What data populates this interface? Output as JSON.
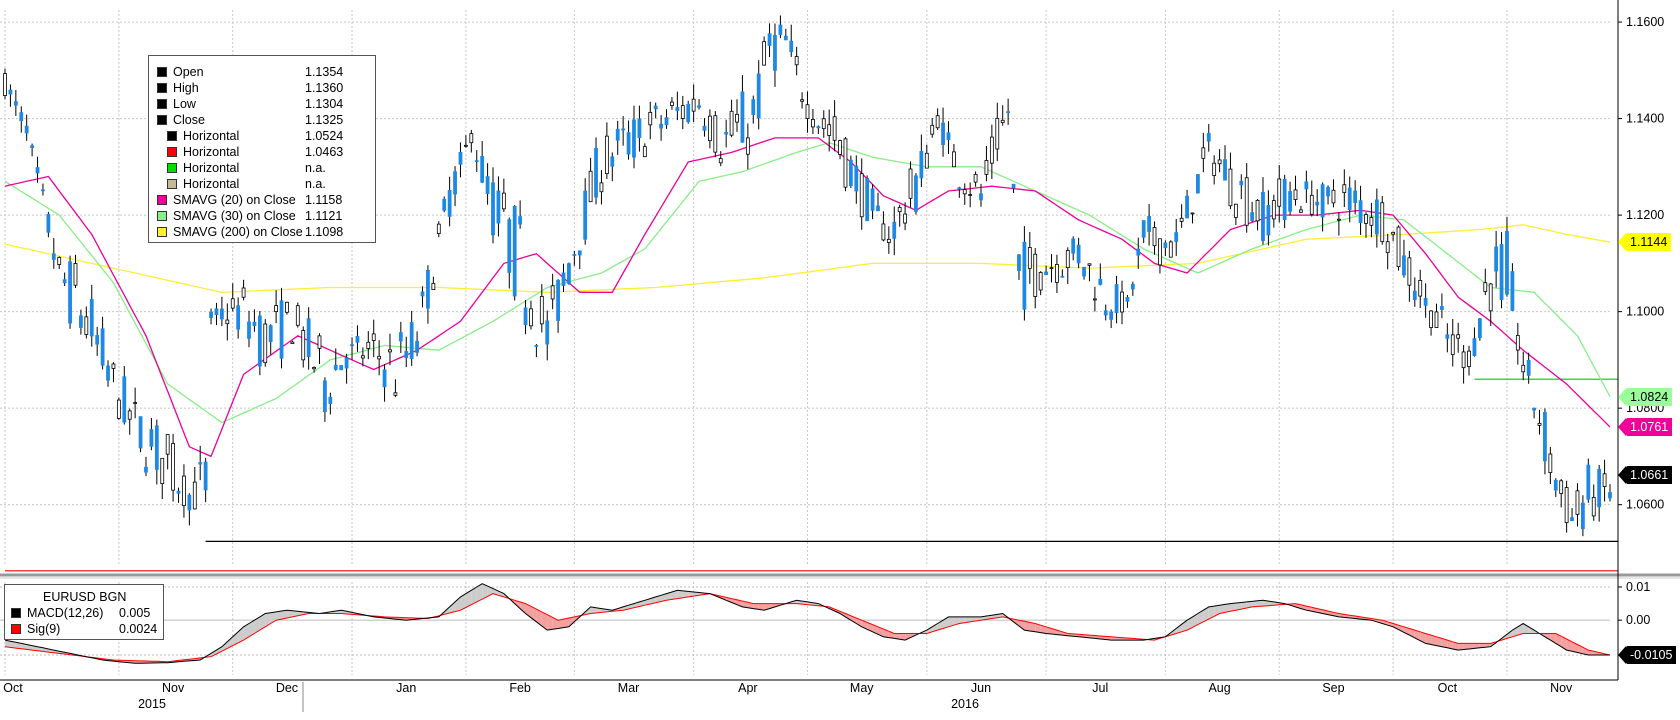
{
  "chart_data": [
    {
      "type": "candlestick",
      "title": "",
      "ylim": [
        1.0475,
        1.1625
      ],
      "yticks": [
        1.06,
        1.08,
        1.1,
        1.12,
        1.14,
        1.16
      ],
      "ytick_labels": [
        "1.0600",
        "1.0800",
        "1.1000",
        "1.1200",
        "1.1400",
        "1.1600"
      ],
      "x_months": [
        "Oct",
        "Nov",
        "Dec",
        "Jan",
        "Feb",
        "Mar",
        "Apr",
        "May",
        "Jun",
        "Jul",
        "Aug",
        "Sep",
        "Oct",
        "Nov"
      ],
      "x_years": [
        "2015",
        "2016"
      ],
      "trading_days": 297,
      "month_start_index": [
        0,
        21,
        42,
        64,
        85,
        105,
        127,
        148,
        170,
        192,
        214,
        235,
        256,
        277
      ],
      "ohlc_anchors": [
        [
          0,
          1.145,
          1.1495
        ],
        [
          4,
          1.137,
          1.139
        ],
        [
          10,
          1.103,
          1.112
        ],
        [
          14,
          1.092,
          1.11
        ],
        [
          20,
          1.08,
          1.09
        ],
        [
          24,
          1.07,
          1.082
        ],
        [
          30,
          1.062,
          1.075
        ],
        [
          34,
          1.059,
          1.065
        ],
        [
          37,
          1.0568,
          1.072
        ],
        [
          38,
          1.098,
          1.1
        ],
        [
          44,
          1.095,
          1.105
        ],
        [
          48,
          1.087,
          1.101
        ],
        [
          53,
          1.093,
          1.103
        ],
        [
          59,
          1.078,
          1.093
        ],
        [
          63,
          1.088,
          1.094
        ],
        [
          68,
          1.088,
          1.096
        ],
        [
          72,
          1.08,
          1.095
        ],
        [
          76,
          1.09,
          1.1
        ],
        [
          82,
          1.12,
          1.128
        ],
        [
          86,
          1.135,
          1.138
        ],
        [
          90,
          1.115,
          1.129
        ],
        [
          95,
          1.1,
          1.12
        ],
        [
          100,
          1.088,
          1.102
        ],
        [
          104,
          1.105,
          1.115
        ],
        [
          110,
          1.125,
          1.137
        ],
        [
          115,
          1.13,
          1.14
        ],
        [
          122,
          1.135,
          1.145
        ],
        [
          128,
          1.14,
          1.147
        ],
        [
          132,
          1.13,
          1.14
        ],
        [
          138,
          1.132,
          1.148
        ],
        [
          141,
          1.15,
          1.16
        ],
        [
          144,
          1.15,
          1.161
        ],
        [
          148,
          1.14,
          1.145
        ],
        [
          153,
          1.13,
          1.142
        ],
        [
          158,
          1.12,
          1.13
        ],
        [
          163,
          1.113,
          1.118
        ],
        [
          168,
          1.12,
          1.132
        ],
        [
          172,
          1.138,
          1.142
        ],
        [
          176,
          1.125,
          1.133
        ],
        [
          180,
          1.12,
          1.128
        ],
        [
          183,
          1.132,
          1.14
        ],
        [
          185,
          1.14,
          1.143
        ],
        [
          187,
          1.1,
          1.115
        ],
        [
          192,
          1.105,
          1.114
        ],
        [
          198,
          1.108,
          1.116
        ],
        [
          203,
          1.098,
          1.108
        ],
        [
          207,
          1.1,
          1.103
        ],
        [
          210,
          1.11,
          1.12
        ],
        [
          216,
          1.11,
          1.118
        ],
        [
          222,
          1.13,
          1.137
        ],
        [
          227,
          1.12,
          1.132
        ],
        [
          232,
          1.115,
          1.125
        ],
        [
          237,
          1.12,
          1.129
        ],
        [
          242,
          1.12,
          1.126
        ],
        [
          248,
          1.118,
          1.128
        ],
        [
          254,
          1.115,
          1.125
        ],
        [
          258,
          1.105,
          1.115
        ],
        [
          262,
          1.1,
          1.104
        ],
        [
          266,
          1.088,
          1.1
        ],
        [
          270,
          1.088,
          1.093
        ],
        [
          274,
          1.1,
          1.115
        ],
        [
          277,
          1.1,
          1.116
        ],
        [
          280,
          1.085,
          1.092
        ],
        [
          283,
          1.072,
          1.085
        ],
        [
          286,
          1.06,
          1.07
        ],
        [
          289,
          1.053,
          1.061
        ],
        [
          292,
          1.056,
          1.068
        ],
        [
          296,
          1.06,
          1.0661
        ]
      ],
      "smavg20": [
        [
          0,
          1.126
        ],
        [
          8,
          1.128
        ],
        [
          16,
          1.116
        ],
        [
          26,
          1.095
        ],
        [
          34,
          1.072
        ],
        [
          38,
          1.07
        ],
        [
          44,
          1.087
        ],
        [
          54,
          1.095
        ],
        [
          60,
          1.092
        ],
        [
          68,
          1.088
        ],
        [
          76,
          1.092
        ],
        [
          84,
          1.098
        ],
        [
          92,
          1.11
        ],
        [
          98,
          1.112
        ],
        [
          106,
          1.104
        ],
        [
          112,
          1.104
        ],
        [
          118,
          1.116
        ],
        [
          126,
          1.131
        ],
        [
          134,
          1.133
        ],
        [
          142,
          1.136
        ],
        [
          150,
          1.136
        ],
        [
          156,
          1.131
        ],
        [
          162,
          1.124
        ],
        [
          168,
          1.121
        ],
        [
          174,
          1.125
        ],
        [
          182,
          1.126
        ],
        [
          190,
          1.125
        ],
        [
          198,
          1.119
        ],
        [
          206,
          1.115
        ],
        [
          212,
          1.11
        ],
        [
          218,
          1.108
        ],
        [
          226,
          1.117
        ],
        [
          234,
          1.12
        ],
        [
          242,
          1.12
        ],
        [
          250,
          1.121
        ],
        [
          256,
          1.12
        ],
        [
          262,
          1.112
        ],
        [
          268,
          1.103
        ],
        [
          274,
          1.098
        ],
        [
          280,
          1.092
        ],
        [
          288,
          1.085
        ],
        [
          296,
          1.0761
        ]
      ],
      "smavg30": [
        [
          0,
          1.127
        ],
        [
          10,
          1.12
        ],
        [
          20,
          1.106
        ],
        [
          30,
          1.085
        ],
        [
          40,
          1.077
        ],
        [
          50,
          1.082
        ],
        [
          60,
          1.09
        ],
        [
          70,
          1.093
        ],
        [
          80,
          1.092
        ],
        [
          90,
          1.098
        ],
        [
          100,
          1.105
        ],
        [
          110,
          1.108
        ],
        [
          118,
          1.113
        ],
        [
          128,
          1.127
        ],
        [
          136,
          1.129
        ],
        [
          146,
          1.133
        ],
        [
          152,
          1.135
        ],
        [
          160,
          1.132
        ],
        [
          170,
          1.13
        ],
        [
          180,
          1.13
        ],
        [
          190,
          1.125
        ],
        [
          200,
          1.12
        ],
        [
          210,
          1.113
        ],
        [
          220,
          1.108
        ],
        [
          230,
          1.113
        ],
        [
          240,
          1.117
        ],
        [
          250,
          1.12
        ],
        [
          258,
          1.119
        ],
        [
          266,
          1.112
        ],
        [
          274,
          1.105
        ],
        [
          282,
          1.104
        ],
        [
          290,
          1.095
        ],
        [
          296,
          1.0824
        ]
      ],
      "smavg200": [
        [
          0,
          1.114
        ],
        [
          20,
          1.109
        ],
        [
          40,
          1.104
        ],
        [
          60,
          1.105
        ],
        [
          80,
          1.105
        ],
        [
          100,
          1.104
        ],
        [
          120,
          1.105
        ],
        [
          140,
          1.107
        ],
        [
          160,
          1.11
        ],
        [
          180,
          1.11
        ],
        [
          200,
          1.109
        ],
        [
          220,
          1.11
        ],
        [
          240,
          1.115
        ],
        [
          258,
          1.116
        ],
        [
          272,
          1.117
        ],
        [
          280,
          1.118
        ],
        [
          288,
          1.116
        ],
        [
          296,
          1.1144
        ]
      ],
      "horizontal_lines": [
        {
          "value": 1.0524,
          "color": "#000000",
          "from_index": 37
        },
        {
          "value": 1.0463,
          "color": "#ff0000",
          "from_index": 0
        },
        {
          "value": 1.086,
          "color": "#00cc00",
          "from_index": 271
        }
      ],
      "price_badges": [
        {
          "label": "1.1144",
          "value": 1.1144,
          "bg": "#ffff00",
          "fg": "#000000"
        },
        {
          "label": "1.0824",
          "value": 1.0824,
          "bg": "#99ff99",
          "fg": "#000000"
        },
        {
          "label": "1.0761",
          "value": 1.0761,
          "bg": "#ee0099",
          "fg": "#ffffff"
        },
        {
          "label": "1.0661",
          "value": 1.0661,
          "bg": "#000000",
          "fg": "#ffffff"
        }
      ],
      "colors": {
        "up": "#000000",
        "down": "#1e88e5",
        "sma20": "#ee0099",
        "sma30": "#88ee88",
        "sma200": "#ffee33"
      },
      "legend": {
        "placement": "top-left",
        "items": [
          {
            "label": "Open",
            "value": "1.1354",
            "color": "#000000",
            "indent": false
          },
          {
            "label": "High",
            "value": "1.1360",
            "color": "#000000",
            "indent": false
          },
          {
            "label": "Low",
            "value": "1.1304",
            "color": "#000000",
            "indent": false
          },
          {
            "label": "Close",
            "value": "1.1325",
            "color": "#000000",
            "indent": false
          },
          {
            "label": "Horizontal",
            "value": "1.0524",
            "color": "#000000",
            "indent": true
          },
          {
            "label": "Horizontal",
            "value": "1.0463",
            "color": "#ff0000",
            "indent": true
          },
          {
            "label": "Horizontal",
            "value": "n.a.",
            "color": "#00dd00",
            "indent": true
          },
          {
            "label": "Horizontal",
            "value": "n.a.",
            "color": "#c8b89a",
            "indent": true
          },
          {
            "label": "SMAVG (20) on Close",
            "value": "1.1158",
            "color": "#ee0099",
            "indent": false
          },
          {
            "label": "SMAVG (30) on Close",
            "value": "1.1121",
            "color": "#88ee88",
            "indent": false
          },
          {
            "label": "SMAVG (200) on Close",
            "value": "1.1098",
            "color": "#ffee33",
            "indent": false
          }
        ]
      }
    },
    {
      "type": "line",
      "title": "",
      "ylim": [
        -0.0135,
        0.0115
      ],
      "yticks": [
        0.01,
        0.0,
        -0.0105
      ],
      "ytick_labels": [
        "0.01",
        "0.00",
        "-0.0105"
      ],
      "legend": {
        "placement": "top-left",
        "title": "EURUSD BGN",
        "items": [
          {
            "label": "MACD(12,26)",
            "value": "0.005",
            "color": "#000000"
          },
          {
            "label": "Sig(9)",
            "value": "0.0024",
            "color": "#ff0000"
          }
        ]
      },
      "macd": [
        [
          0,
          -0.006
        ],
        [
          6,
          -0.008
        ],
        [
          12,
          -0.01
        ],
        [
          18,
          -0.012
        ],
        [
          24,
          -0.013
        ],
        [
          30,
          -0.0128
        ],
        [
          36,
          -0.012
        ],
        [
          40,
          -0.008
        ],
        [
          44,
          -0.002
        ],
        [
          48,
          0.002
        ],
        [
          52,
          0.003
        ],
        [
          58,
          0.002
        ],
        [
          62,
          0.003
        ],
        [
          68,
          0.001
        ],
        [
          74,
          0.0
        ],
        [
          80,
          0.001
        ],
        [
          84,
          0.007
        ],
        [
          88,
          0.011
        ],
        [
          92,
          0.008
        ],
        [
          96,
          0.002
        ],
        [
          100,
          -0.003
        ],
        [
          104,
          -0.002
        ],
        [
          108,
          0.004
        ],
        [
          112,
          0.003
        ],
        [
          118,
          0.006
        ],
        [
          124,
          0.009
        ],
        [
          130,
          0.008
        ],
        [
          136,
          0.004
        ],
        [
          140,
          0.003
        ],
        [
          146,
          0.006
        ],
        [
          150,
          0.005
        ],
        [
          154,
          0.002
        ],
        [
          158,
          -0.002
        ],
        [
          162,
          -0.005
        ],
        [
          166,
          -0.006
        ],
        [
          170,
          -0.003
        ],
        [
          174,
          0.001
        ],
        [
          180,
          0.001
        ],
        [
          184,
          0.002
        ],
        [
          188,
          -0.003
        ],
        [
          192,
          -0.004
        ],
        [
          198,
          -0.005
        ],
        [
          204,
          -0.006
        ],
        [
          210,
          -0.006
        ],
        [
          214,
          -0.005
        ],
        [
          218,
          0.0
        ],
        [
          222,
          0.004
        ],
        [
          226,
          0.005
        ],
        [
          232,
          0.006
        ],
        [
          236,
          0.005
        ],
        [
          240,
          0.003
        ],
        [
          246,
          0.001
        ],
        [
          252,
          0.0
        ],
        [
          256,
          -0.002
        ],
        [
          262,
          -0.007
        ],
        [
          268,
          -0.009
        ],
        [
          274,
          -0.008
        ],
        [
          278,
          -0.003
        ],
        [
          280,
          -0.001
        ],
        [
          284,
          -0.005
        ],
        [
          288,
          -0.009
        ],
        [
          292,
          -0.0105
        ],
        [
          296,
          -0.0105
        ]
      ],
      "signal": [
        [
          0,
          -0.008
        ],
        [
          10,
          -0.01
        ],
        [
          20,
          -0.012
        ],
        [
          30,
          -0.0125
        ],
        [
          38,
          -0.011
        ],
        [
          44,
          -0.006
        ],
        [
          50,
          0.0
        ],
        [
          56,
          0.002
        ],
        [
          62,
          0.002
        ],
        [
          70,
          0.001
        ],
        [
          78,
          0.0005
        ],
        [
          84,
          0.003
        ],
        [
          90,
          0.008
        ],
        [
          96,
          0.005
        ],
        [
          102,
          0.0
        ],
        [
          108,
          0.002
        ],
        [
          114,
          0.003
        ],
        [
          122,
          0.006
        ],
        [
          130,
          0.008
        ],
        [
          138,
          0.005
        ],
        [
          146,
          0.005
        ],
        [
          152,
          0.004
        ],
        [
          158,
          0.0
        ],
        [
          164,
          -0.004
        ],
        [
          170,
          -0.004
        ],
        [
          176,
          -0.001
        ],
        [
          184,
          0.001
        ],
        [
          190,
          -0.001
        ],
        [
          196,
          -0.004
        ],
        [
          204,
          -0.005
        ],
        [
          212,
          -0.006
        ],
        [
          218,
          -0.003
        ],
        [
          224,
          0.002
        ],
        [
          230,
          0.004
        ],
        [
          238,
          0.005
        ],
        [
          246,
          0.002
        ],
        [
          254,
          0.0
        ],
        [
          262,
          -0.004
        ],
        [
          268,
          -0.007
        ],
        [
          274,
          -0.007
        ],
        [
          280,
          -0.004
        ],
        [
          286,
          -0.004
        ],
        [
          292,
          -0.009
        ],
        [
          296,
          -0.0105
        ]
      ],
      "colors": {
        "macd": "#000000",
        "signal": "#ff0000",
        "fill_above": "#cccccc",
        "fill_below": "#f2a0a0"
      }
    }
  ]
}
